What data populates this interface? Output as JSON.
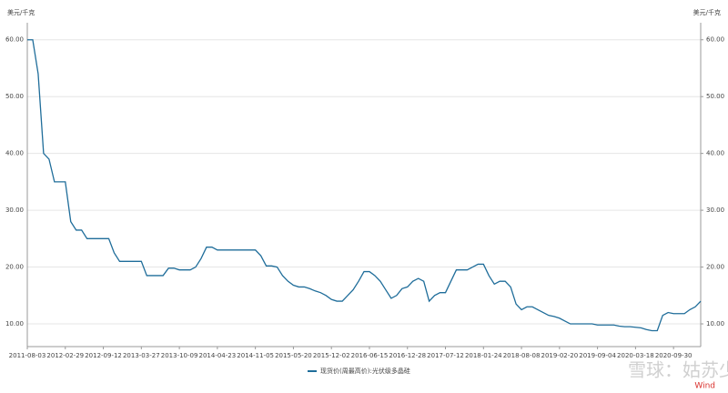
{
  "chart_data": {
    "type": "line",
    "y_unit": "美元/千克",
    "y2_unit": "美元/千克",
    "categories": [
      "2011-08-03",
      null,
      null,
      null,
      null,
      null,
      null,
      "2012-02-29",
      null,
      null,
      null,
      null,
      null,
      null,
      "2012-09-12",
      null,
      null,
      null,
      null,
      null,
      null,
      "2013-03-27",
      null,
      null,
      null,
      null,
      null,
      null,
      "2013-10-09",
      null,
      null,
      null,
      null,
      null,
      null,
      "2014-04-23",
      null,
      null,
      null,
      null,
      null,
      null,
      "2014-11-05",
      null,
      null,
      null,
      null,
      null,
      null,
      "2015-05-20",
      null,
      null,
      null,
      null,
      null,
      null,
      "2015-12-02",
      null,
      null,
      null,
      null,
      null,
      null,
      "2016-06-15",
      null,
      null,
      null,
      null,
      null,
      null,
      "2016-12-28",
      null,
      null,
      null,
      null,
      null,
      null,
      "2017-07-12",
      null,
      null,
      null,
      null,
      null,
      null,
      "2018-01-24",
      null,
      null,
      null,
      null,
      null,
      null,
      "2018-08-08",
      null,
      null,
      null,
      null,
      null,
      null,
      "2019-02-20",
      null,
      null,
      null,
      null,
      null,
      null,
      "2019-09-04",
      null,
      null,
      null,
      null,
      null,
      null,
      "2020-03-18",
      null,
      null,
      null,
      null,
      null,
      null,
      "2020-09-30",
      null,
      null,
      null,
      null,
      null
    ],
    "series": [
      {
        "name": "现货价(周最高价):光伏级多晶硅",
        "color": "#1f6d9a",
        "axis": "y",
        "values": [
          60,
          60,
          54,
          40,
          39,
          35,
          35,
          35,
          28,
          26.5,
          26.5,
          25,
          25,
          25,
          25,
          25,
          22.5,
          21,
          21,
          21,
          21,
          21,
          18.5,
          18.5,
          18.5,
          18.5,
          19.8,
          19.8,
          19.5,
          19.5,
          19.5,
          20,
          21.5,
          23.5,
          23.5,
          23,
          23,
          23,
          23,
          23,
          23,
          23,
          23,
          22,
          20.2,
          20.2,
          20,
          18.5,
          17.5,
          16.8,
          16.5,
          16.5,
          16.2,
          15.8,
          15.5,
          15,
          14.3,
          14,
          14,
          15,
          16,
          17.5,
          19.2,
          19.2,
          18.5,
          17.5,
          16,
          14.5,
          15,
          16.2,
          16.5,
          17.5,
          18,
          17.5,
          14,
          15,
          15.5,
          15.5,
          17.5,
          19.5,
          19.5,
          19.5,
          20,
          20.5,
          20.5,
          18.5,
          17,
          17.5,
          17.5,
          16.5,
          13.5,
          12.5,
          13,
          13,
          12.5,
          12,
          11.5,
          11.3,
          11,
          10.5,
          10,
          10,
          10,
          10,
          10,
          9.8,
          9.8,
          9.8,
          9.8,
          9.6,
          9.5,
          9.5,
          9.4,
          9.3,
          9,
          8.8,
          8.8,
          11.5,
          12,
          11.8,
          11.8,
          11.8,
          12.5,
          13,
          14
        ]
      }
    ],
    "ylim": [
      6,
      63
    ],
    "yticks": [
      {
        "value": 10,
        "label": "10.00"
      },
      {
        "value": 20,
        "label": "20.00"
      },
      {
        "value": 30,
        "label": "30.00"
      },
      {
        "value": 40,
        "label": "40.00"
      },
      {
        "value": 50,
        "label": "50.00"
      },
      {
        "value": 60,
        "label": "60.00"
      }
    ],
    "y2lim": [
      6,
      63
    ],
    "y2ticks": [
      {
        "value": 10,
        "label": "10.00"
      },
      {
        "value": 20,
        "label": "20.00"
      },
      {
        "value": 30,
        "label": "30.00"
      },
      {
        "value": 40,
        "label": "40.00"
      },
      {
        "value": 50,
        "label": "50.00"
      },
      {
        "value": 60,
        "label": "60.00"
      }
    ],
    "grid": true,
    "legend": "bottom",
    "watermark": "雪球：姑苏少游",
    "source": "Wind"
  }
}
